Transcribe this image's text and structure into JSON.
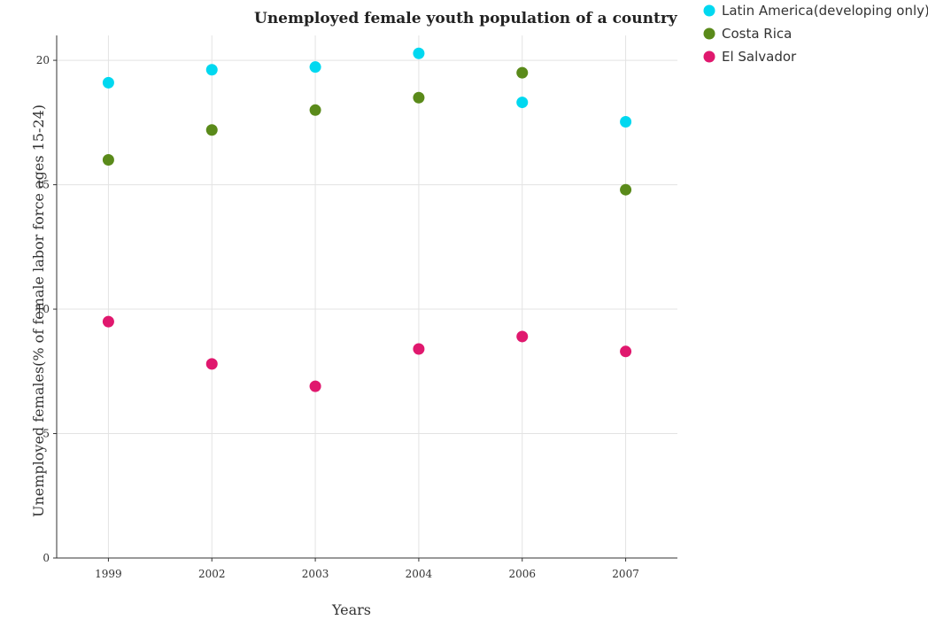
{
  "chart_data": {
    "type": "scatter",
    "title": "Unemployed female youth population of a country",
    "xlabel": "Years",
    "ylabel": "Unemployed females(% of female labor force ages 15-24)",
    "categories": [
      "1999",
      "2002",
      "2003",
      "2004",
      "2006",
      "2007"
    ],
    "ylim": [
      0,
      21
    ],
    "yticks": [
      0,
      5,
      10,
      15,
      20
    ],
    "grid": true,
    "legend_position": "top-right",
    "series": [
      {
        "name": "Latin America(developing only)",
        "color": "#00d8f0",
        "values": [
          19.1,
          19.62,
          19.73,
          20.28,
          18.31,
          17.53
        ]
      },
      {
        "name": "Costa Rica",
        "color": "#5a8a1a",
        "values": [
          16.0,
          17.2,
          18.0,
          18.5,
          19.5,
          14.8
        ]
      },
      {
        "name": "El Salvador",
        "color": "#e0186e",
        "values": [
          9.5,
          7.8,
          6.9,
          8.4,
          8.9,
          8.3
        ]
      }
    ]
  }
}
